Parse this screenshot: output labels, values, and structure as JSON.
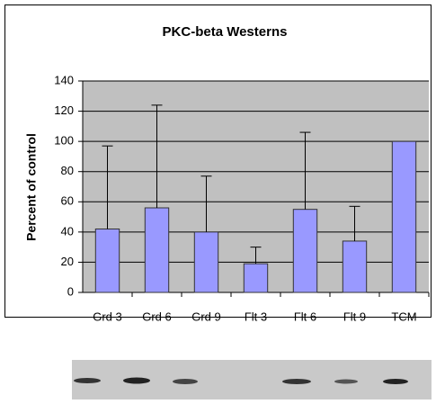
{
  "chart_data": {
    "type": "bar",
    "title": "PKC-beta Westerns",
    "y_label": "Percent of control",
    "categories": [
      "Grd 3",
      "Grd 6",
      "Grd 9",
      "Flt 3",
      "Flt 6",
      "Flt 9",
      "TCM"
    ],
    "values": [
      42,
      56,
      40,
      19,
      55,
      34,
      100
    ],
    "errors": [
      55,
      68,
      37,
      11,
      51,
      23,
      null
    ],
    "color": "#9999ff",
    "ylim": [
      0,
      140
    ],
    "yticks": [
      0,
      20,
      40,
      60,
      80,
      100,
      120,
      140
    ],
    "grid": true
  }
}
